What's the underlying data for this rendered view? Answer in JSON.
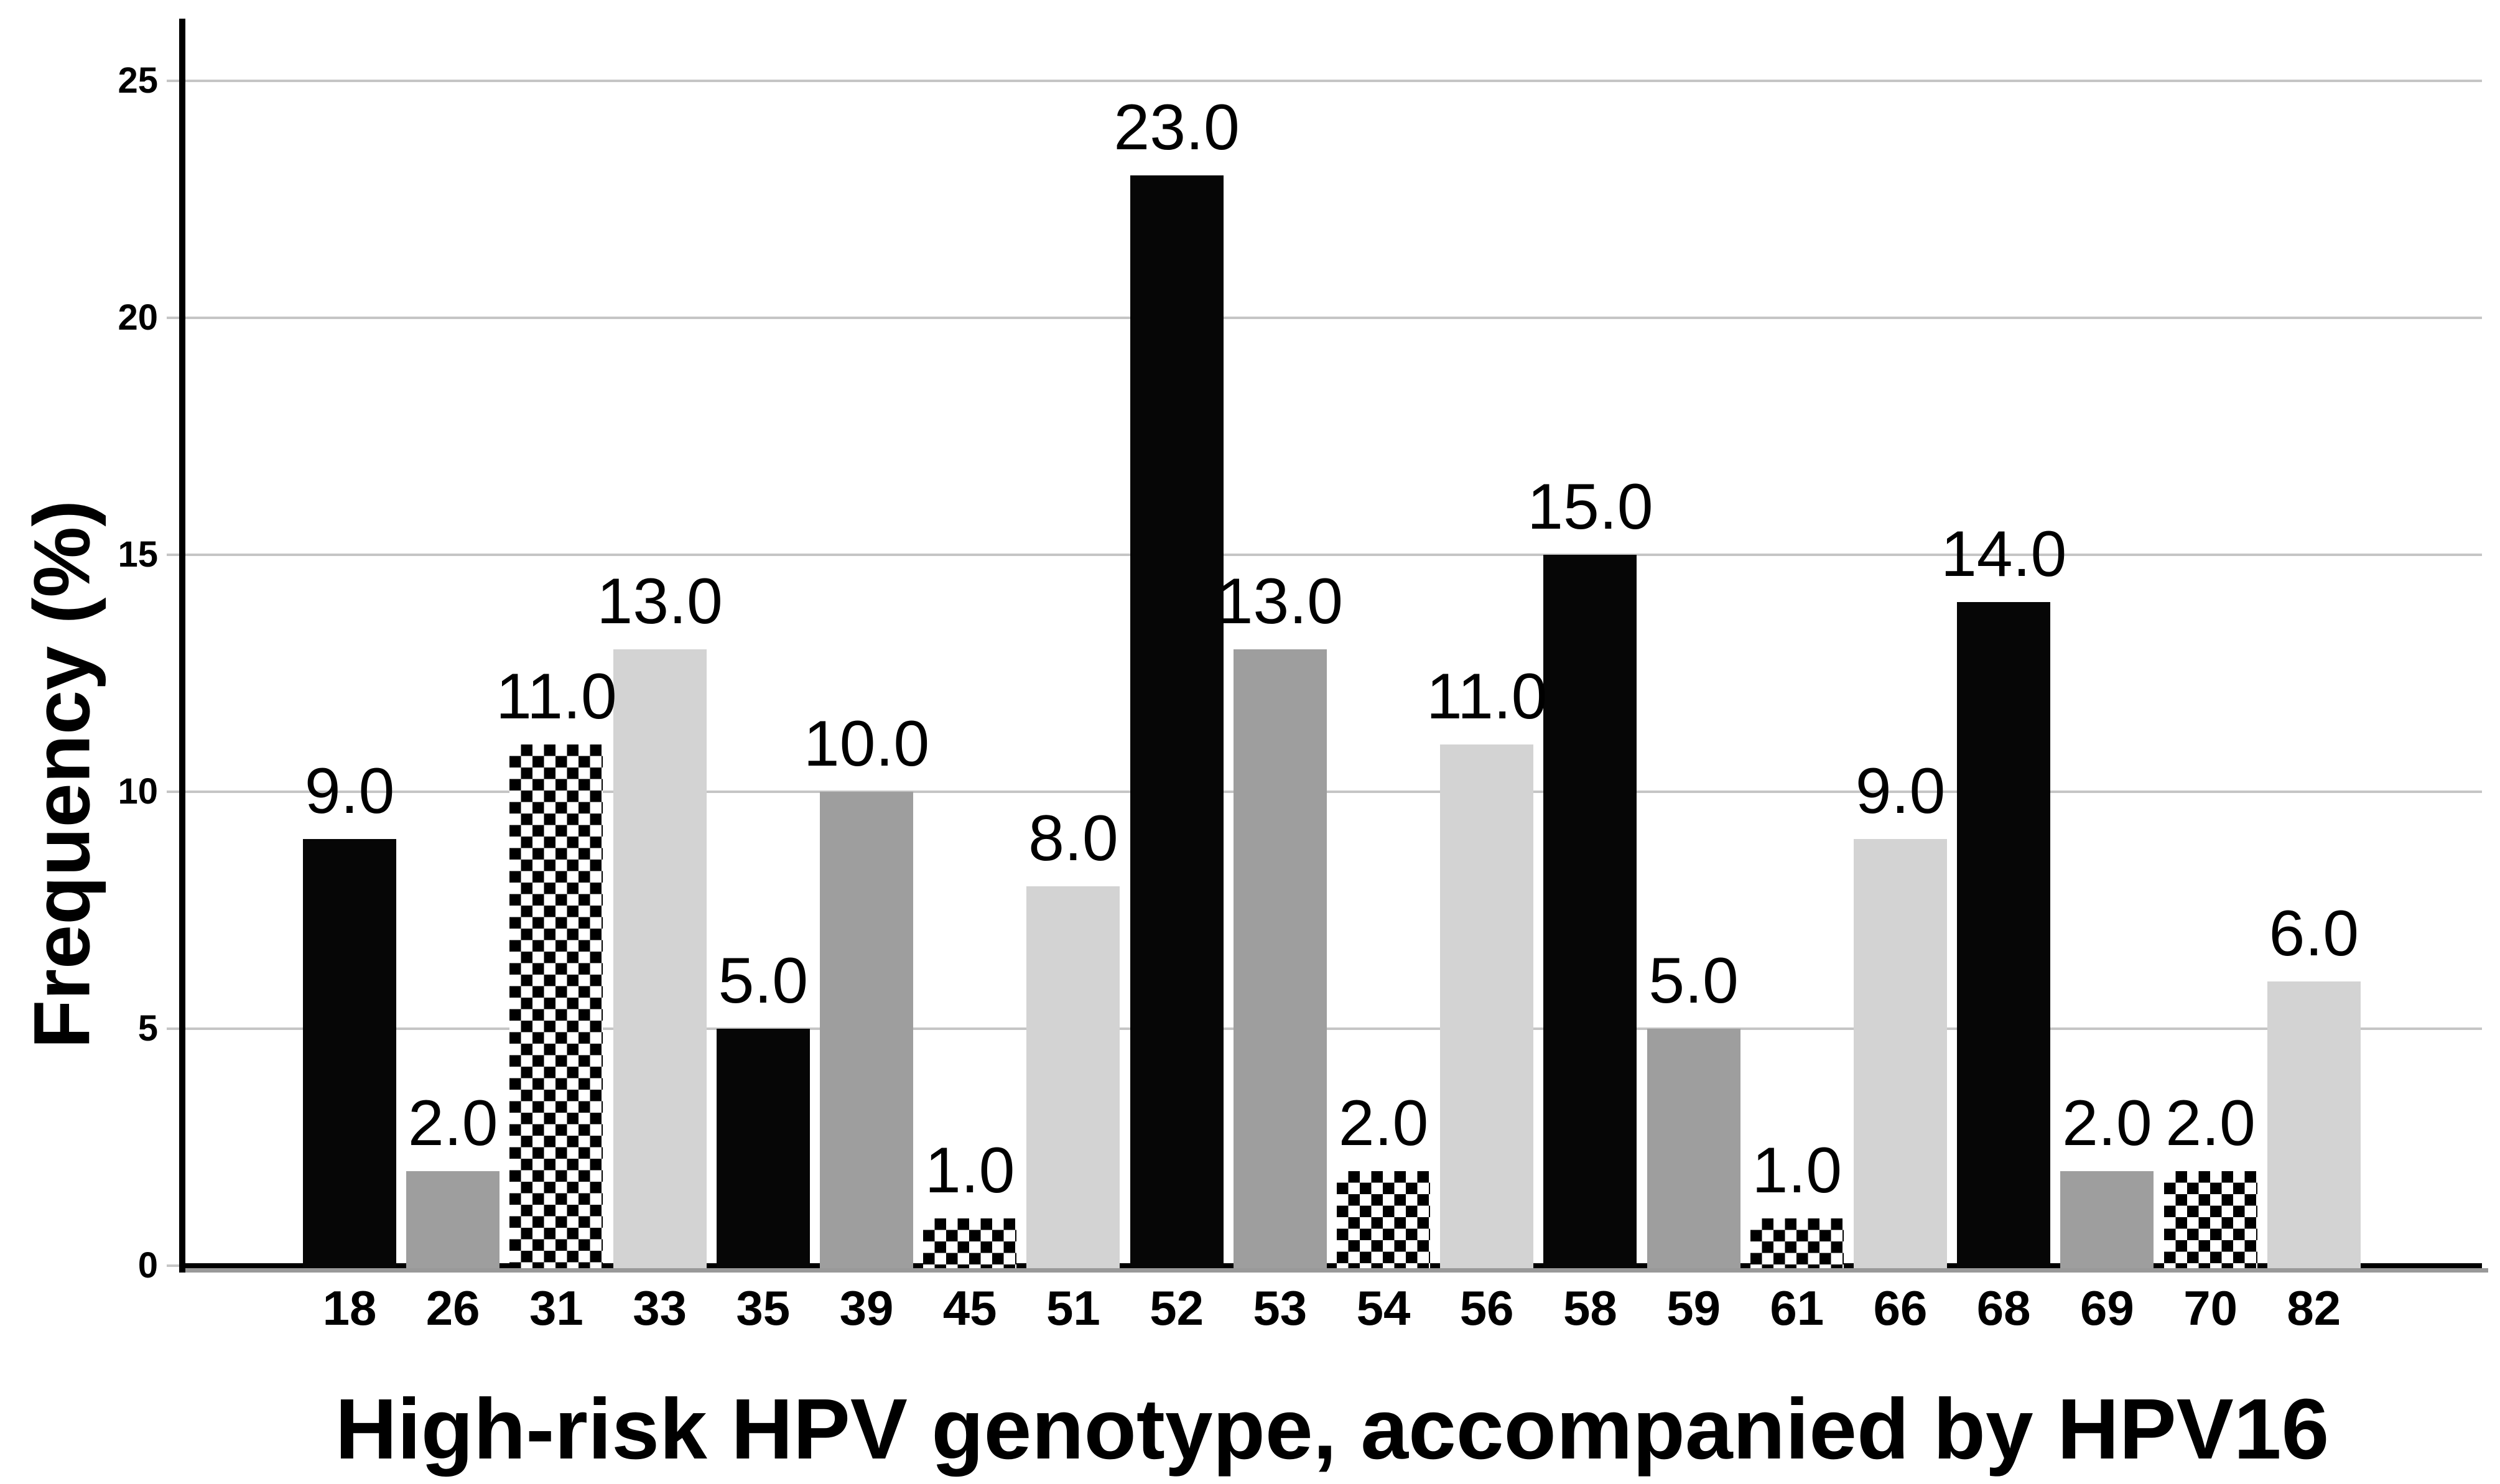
{
  "chart_data": {
    "type": "bar",
    "title": "",
    "xlabel": "High-risk HPV genotype, accompanied by HPV16",
    "ylabel": "Frequency (%)",
    "categories": [
      "18",
      "26",
      "31",
      "33",
      "35",
      "39",
      "45",
      "51",
      "52",
      "53",
      "54",
      "56",
      "58",
      "59",
      "61",
      "66",
      "68",
      "69",
      "70",
      "82"
    ],
    "values": [
      9,
      2,
      11,
      13,
      5,
      10,
      1,
      8,
      23,
      13,
      2,
      11,
      15,
      5,
      1,
      9,
      14,
      2,
      2,
      6
    ],
    "data_labels": [
      "9.0",
      "2.0",
      "11.0",
      "13.0",
      "5.0",
      "10.0",
      "1.0",
      "8.0",
      "23.0",
      "13.0",
      "2.0",
      "11.0",
      "15.0",
      "5.0",
      "1.0",
      "9.0",
      "14.0",
      "2.0",
      "2.0",
      "6.0"
    ],
    "bar_styles": [
      "solid-black",
      "solid-darkgray",
      "checkerboard",
      "solid-lightgray",
      "solid-black",
      "solid-darkgray",
      "checkerboard",
      "solid-lightgray",
      "solid-black",
      "solid-darkgray",
      "checkerboard",
      "solid-lightgray",
      "solid-black",
      "solid-darkgray",
      "checkerboard",
      "solid-lightgray",
      "solid-black",
      "solid-darkgray",
      "checkerboard",
      "solid-lightgray"
    ],
    "y_ticks": [
      0,
      5,
      10,
      15,
      20,
      25
    ],
    "y_tick_labels": [
      "0",
      "5",
      "10",
      "15",
      "20",
      "25"
    ],
    "ylim": [
      0,
      26.3
    ],
    "grid": "horizontal-gridlines-on",
    "legend": "none",
    "colors": {
      "bar_black": "#060606",
      "bar_dark_gray": "#9e9e9e",
      "bar_light_gray": "#d3d3d3",
      "checker_fg": "#000000",
      "checker_bg": "#ffffff",
      "gridline": "#c5c5c5",
      "axis": "#000000",
      "baseline_shadow": "#999999",
      "text": "#000000",
      "background": "#ffffff"
    }
  }
}
